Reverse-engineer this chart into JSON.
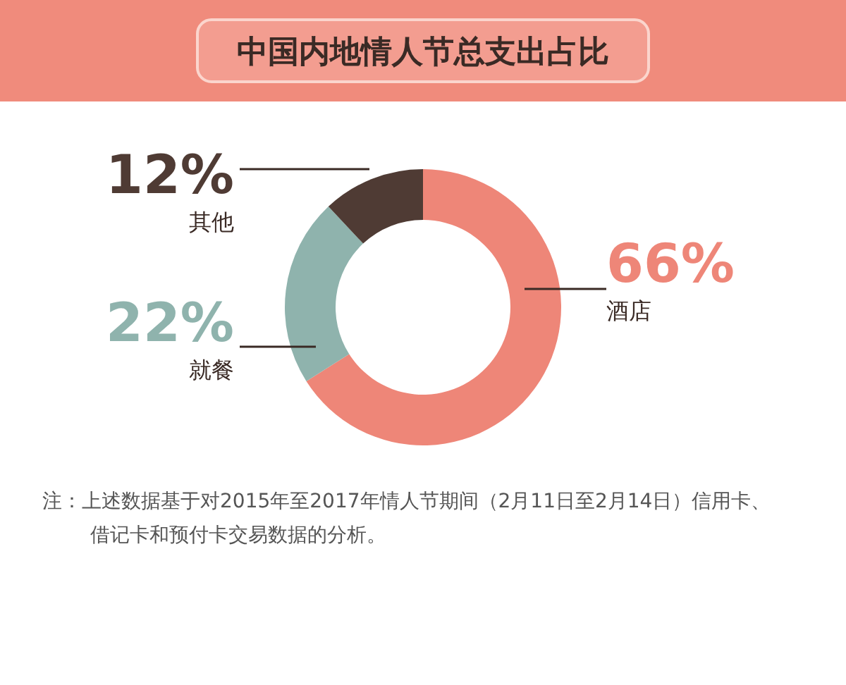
{
  "chart_data": {
    "type": "donut",
    "title": "中国内地情人节总支出占比",
    "categories": [
      "酒店",
      "就餐",
      "其他"
    ],
    "values": [
      66,
      22,
      12
    ],
    "colors": [
      "#ee8678",
      "#8fb3ad",
      "#4f3b34"
    ],
    "value_labels": [
      "66%",
      "22%",
      "12%"
    ],
    "annotations": [
      "注：上述数据基于对2015年至2017年情人节期间（2月11日至2月14日）信用卡、借记卡和预付卡交易数据的分析。"
    ]
  }
}
